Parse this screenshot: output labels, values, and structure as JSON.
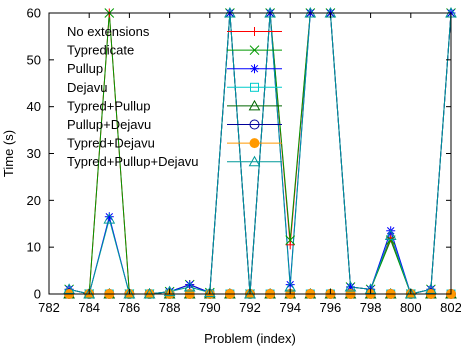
{
  "chart_data": {
    "type": "line",
    "xlabel": "Problem (index)",
    "ylabel": "Time (s)",
    "xlim": [
      782,
      802
    ],
    "ylim": [
      0,
      60
    ],
    "xticks": [
      782,
      784,
      786,
      788,
      790,
      792,
      794,
      796,
      798,
      800,
      802
    ],
    "yticks": [
      0,
      10,
      20,
      30,
      40,
      50,
      60
    ],
    "legend_position": "top-left",
    "x": [
      783,
      784,
      785,
      786,
      787,
      788,
      789,
      790,
      791,
      792,
      793,
      794,
      795,
      796,
      797,
      798,
      799,
      800,
      801,
      802
    ],
    "series": [
      {
        "name": "No extensions",
        "color": "#ff0000",
        "marker": "plus",
        "values": [
          1,
          0,
          60,
          0,
          0,
          0.5,
          2,
          0.3,
          60,
          0,
          60,
          10.5,
          60,
          60,
          1.5,
          1,
          12,
          0,
          1,
          60
        ]
      },
      {
        "name": "Typredicate",
        "color": "#009900",
        "marker": "x",
        "values": [
          1,
          0,
          60,
          0,
          0,
          0.5,
          2,
          0.3,
          60,
          0,
          60,
          11.5,
          60,
          60,
          1.5,
          1,
          11.5,
          0,
          1,
          60
        ]
      },
      {
        "name": "Pullup",
        "color": "#0000ff",
        "marker": "star",
        "values": [
          1,
          0,
          16.5,
          0,
          0,
          0.5,
          2,
          0.3,
          60,
          0,
          60,
          2,
          60,
          60,
          1.5,
          1,
          13.5,
          0,
          1,
          60
        ]
      },
      {
        "name": "Dejavu",
        "color": "#00cccc",
        "marker": "square",
        "values": [
          0,
          0,
          0,
          0,
          0,
          0,
          0,
          0,
          0,
          0,
          0,
          0,
          0,
          0,
          0,
          0,
          0,
          0,
          0,
          0
        ]
      },
      {
        "name": "Typred+Pullup",
        "color": "#006600",
        "marker": "triangle",
        "values": [
          0,
          0,
          0,
          0,
          0,
          0,
          0,
          0,
          0,
          0,
          0,
          0,
          0,
          0,
          0,
          0,
          0,
          0,
          0,
          0
        ]
      },
      {
        "name": "Pullup+Dejavu",
        "color": "#000099",
        "marker": "circle",
        "values": [
          0,
          0,
          0,
          0,
          0,
          0,
          0,
          0,
          0,
          0,
          0,
          0,
          0,
          0,
          0,
          0,
          0,
          0,
          0,
          0
        ]
      },
      {
        "name": "Typred+Dejavu",
        "color": "#ff9900",
        "marker": "filled-circle",
        "values": [
          0,
          0,
          0,
          0,
          0,
          0,
          0,
          0,
          0,
          0,
          0,
          0,
          0,
          0,
          0,
          0,
          0,
          0,
          0,
          0
        ]
      },
      {
        "name": "Typred+Pullup+Dejavu",
        "color": "#009999",
        "marker": "triangle",
        "values": [
          1,
          0,
          16,
          0,
          0,
          0.5,
          1.5,
          0.3,
          60,
          0,
          60,
          1.5,
          60,
          60,
          1.5,
          1,
          12.5,
          0,
          1,
          60
        ]
      }
    ]
  }
}
